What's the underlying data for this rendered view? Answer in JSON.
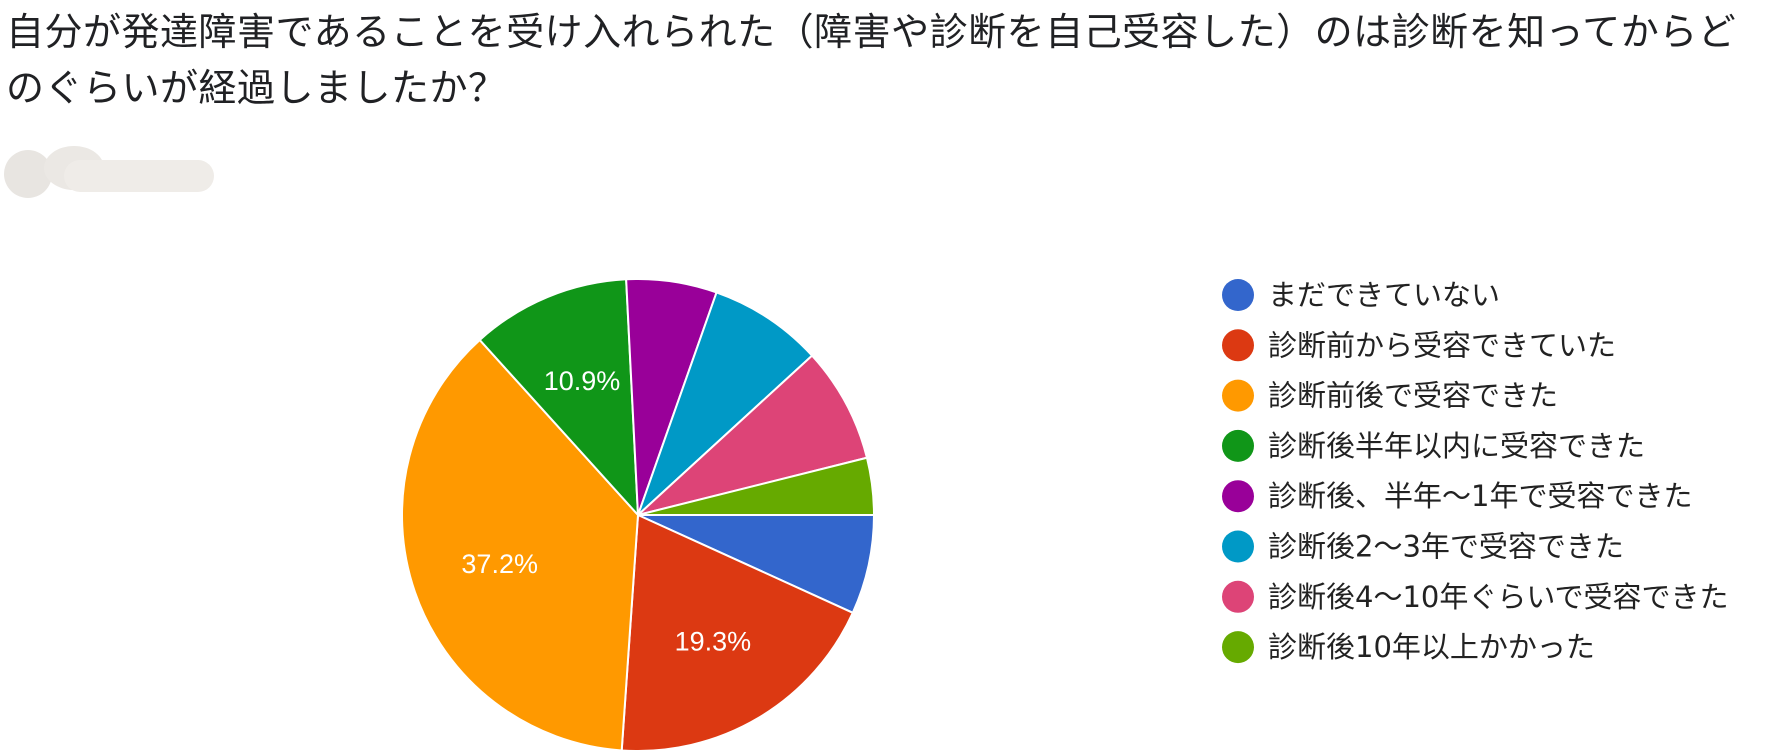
{
  "chart_data": {
    "type": "pie",
    "title": "自分が発達障害であることを受け入れられた（障害や診断を自己受容した）のは診断を知ってからどのぐらいが経過しましたか？",
    "categories": [
      "まだできていない",
      "診断前から受容できていた",
      "診断前後で受容できた",
      "診断後半年以内に受容できた",
      "診断後、半年～1年で受容できた",
      "診断後2～3年で受容できた",
      "診断後4～10年ぐらいで受容できた",
      "診断後10年以上かかった"
    ],
    "values": [
      6.8,
      19.3,
      37.2,
      10.9,
      6.2,
      7.8,
      7.9,
      3.9
    ],
    "data_labels": [
      "",
      "19.3%",
      "37.2%",
      "10.9%",
      "",
      "",
      "",
      ""
    ],
    "colors": [
      "#3366cc",
      "#dc3912",
      "#ff9900",
      "#109618",
      "#990099",
      "#0099c6",
      "#dd4477",
      "#66aa00"
    ],
    "legend_position": "right"
  }
}
